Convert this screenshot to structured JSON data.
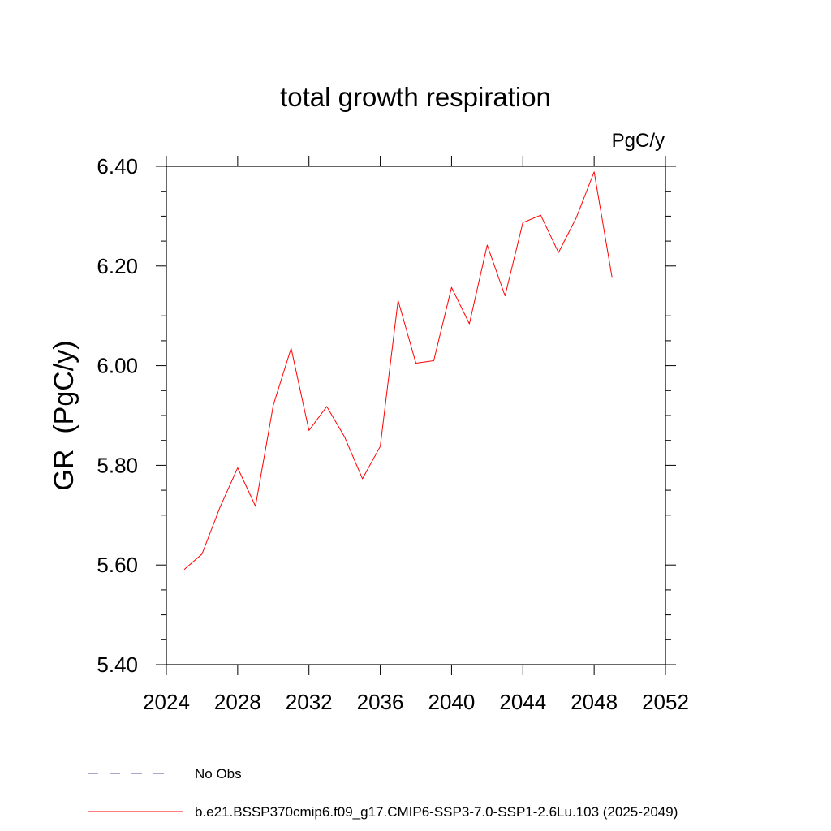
{
  "chart_data": {
    "type": "line",
    "title": "total growth respiration",
    "units_label": "PgC/y",
    "ylabel": "GR  (PgC/y)",
    "xlabel": "",
    "xlim": [
      2024,
      2052
    ],
    "ylim": [
      5.4,
      6.4
    ],
    "x_ticks": [
      2024,
      2028,
      2032,
      2036,
      2040,
      2044,
      2048,
      2052
    ],
    "x_tick_labels": [
      "2024",
      "2028",
      "2032",
      "2036",
      "2040",
      "2044",
      "2048",
      "2052"
    ],
    "y_ticks": [
      5.4,
      5.6,
      5.8,
      6.0,
      6.2,
      6.4
    ],
    "y_tick_labels": [
      "5.40",
      "5.60",
      "5.80",
      "6.00",
      "6.20",
      "6.40"
    ],
    "grid": false,
    "series": [
      {
        "name": "b.e21.BSSP370cmip6.f09_g17.CMIP6-SSP3-7.0-SSP1-2.6Lu.103 (2025-2049)",
        "color": "#ff0000",
        "x": [
          2025,
          2026,
          2027,
          2028,
          2029,
          2030,
          2031,
          2032,
          2033,
          2034,
          2035,
          2036,
          2037,
          2038,
          2039,
          2040,
          2041,
          2042,
          2043,
          2044,
          2045,
          2046,
          2047,
          2048,
          2049
        ],
        "y": [
          5.591,
          5.622,
          5.715,
          5.795,
          5.718,
          5.921,
          6.035,
          5.87,
          5.918,
          5.857,
          5.773,
          5.838,
          6.131,
          6.005,
          6.01,
          6.157,
          6.084,
          6.242,
          6.14,
          6.287,
          6.302,
          6.227,
          6.297,
          6.389,
          6.178
        ]
      }
    ],
    "legend": [
      {
        "label": "No Obs",
        "color": "#5b4b9a",
        "style": "dashed"
      },
      {
        "label": "b.e21.BSSP370cmip6.f09_g17.CMIP6-SSP3-7.0-SSP1-2.6Lu.103 (2025-2049)",
        "color": "#ff0000",
        "style": "solid"
      }
    ],
    "legend_position": "bottom-left"
  }
}
